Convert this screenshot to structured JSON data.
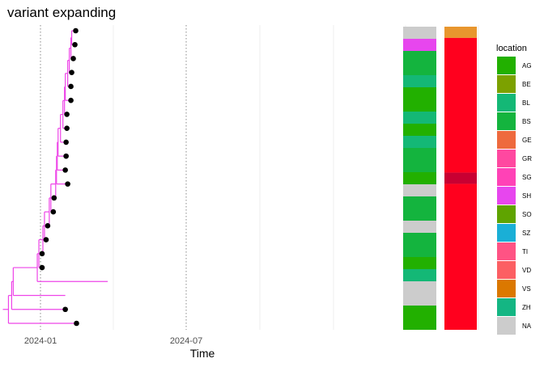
{
  "title": "variant expanding",
  "chart_data": {
    "type": "phylogenetic-tree-with-heatmap",
    "title": "variant expanding",
    "xlabel": "Time",
    "ylabel": "",
    "x_ticks": [
      "2024-01",
      "2024-07"
    ],
    "x_tick_dates": [
      "2024-01-01",
      "2024-07-01"
    ],
    "xlim": [
      "2023-10-25",
      "2025-07-15"
    ],
    "grid": "vertical major dotted, minor light",
    "legend": {
      "title": "location",
      "placement": "right",
      "entries": [
        {
          "label": "AG",
          "color": "#22B000"
        },
        {
          "label": "BE",
          "color": "#7CA100"
        },
        {
          "label": "BL",
          "color": "#14B876"
        },
        {
          "label": "BS",
          "color": "#14B43E"
        },
        {
          "label": "GE",
          "color": "#EE6A3E"
        },
        {
          "label": "GR",
          "color": "#FF48A0"
        },
        {
          "label": "SG",
          "color": "#FF42B6"
        },
        {
          "label": "SH",
          "color": "#E746EE"
        },
        {
          "label": "SO",
          "color": "#5FA400"
        },
        {
          "label": "SZ",
          "color": "#1AAFD6"
        },
        {
          "label": "TI",
          "color": "#FF5384"
        },
        {
          "label": "VD",
          "color": "#FC5F63"
        },
        {
          "label": "VS",
          "color": "#DB7800"
        },
        {
          "label": "ZH",
          "color": "#14B683"
        },
        {
          "label": "NA",
          "color": "#CCCCCC"
        }
      ]
    },
    "tree": {
      "color": "#EE44E8",
      "root_date": "2023-11-15",
      "tips": [
        {
          "date": "2024-02-14",
          "point": true
        },
        {
          "date": "2024-02-13",
          "point": true
        },
        {
          "date": "2024-02-11",
          "point": true
        },
        {
          "date": "2024-02-09",
          "point": true
        },
        {
          "date": "2024-02-08",
          "point": true
        },
        {
          "date": "2024-02-08",
          "point": true
        },
        {
          "date": "2024-02-03",
          "point": true
        },
        {
          "date": "2024-02-03",
          "point": true
        },
        {
          "date": "2024-02-02",
          "point": true
        },
        {
          "date": "2024-02-02",
          "point": true
        },
        {
          "date": "2024-02-01",
          "point": true
        },
        {
          "date": "2024-02-04",
          "point": true
        },
        {
          "date": "2024-01-18",
          "point": true
        },
        {
          "date": "2024-01-17",
          "point": true
        },
        {
          "date": "2024-01-10",
          "point": true
        },
        {
          "date": "2024-01-08",
          "point": true
        },
        {
          "date": "2024-01-03",
          "point": true
        },
        {
          "date": "2024-01-03",
          "point": true
        },
        {
          "date": "2024-03-25",
          "point": false
        },
        {
          "date": "2024-02-01",
          "point": false
        },
        {
          "date": "2024-02-01",
          "point": true
        },
        {
          "date": "2024-02-15",
          "point": true
        }
      ]
    },
    "heatmap_columns": [
      {
        "segments": [
          {
            "location": "NA",
            "rows": 1
          },
          {
            "location": "SH",
            "rows": 1
          },
          {
            "location": "BS",
            "rows": 2
          },
          {
            "location": "BL",
            "rows": 1
          },
          {
            "location": "AG",
            "rows": 2
          },
          {
            "location": "BL",
            "rows": 1
          },
          {
            "location": "AG",
            "rows": 1
          },
          {
            "location": "BL",
            "rows": 1
          },
          {
            "location": "BS",
            "rows": 2
          },
          {
            "location": "AG",
            "rows": 1
          },
          {
            "location": "NA",
            "rows": 1
          },
          {
            "location": "BS",
            "rows": 2
          },
          {
            "location": "NA",
            "rows": 1
          },
          {
            "location": "BS",
            "rows": 2
          },
          {
            "location": "AG",
            "rows": 1
          },
          {
            "location": "BL",
            "rows": 1
          },
          {
            "location": "NA",
            "rows": 2
          },
          {
            "location": "AG",
            "rows": 2
          }
        ]
      },
      {
        "segments": [
          {
            "color": "#E8962E",
            "rows": 1
          },
          {
            "color": "#FF001E",
            "rows": 12
          },
          {
            "color": "#C80032",
            "rows": 1
          },
          {
            "color": "#FF001E",
            "rows": 13
          }
        ]
      }
    ]
  }
}
